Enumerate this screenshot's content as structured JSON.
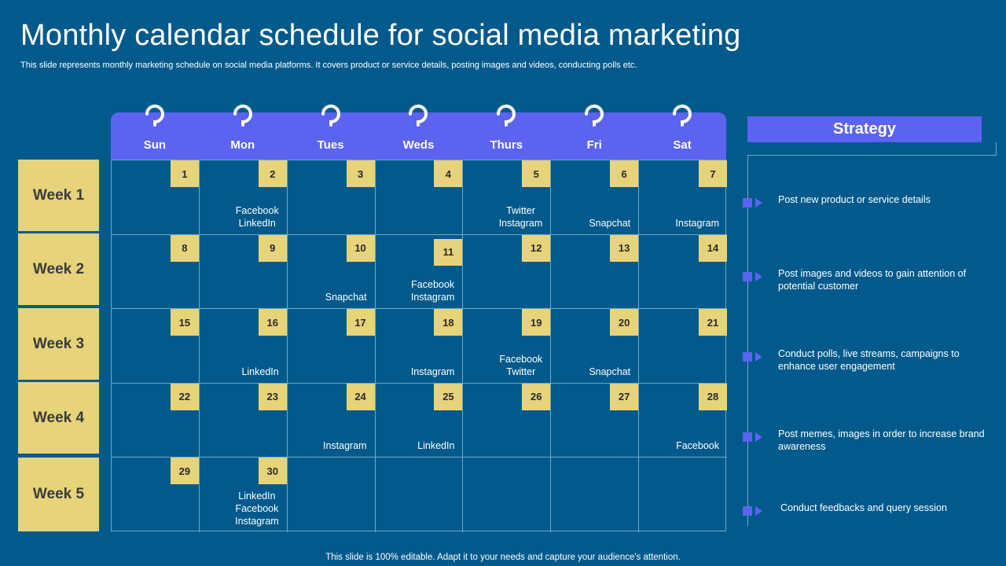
{
  "slide": {
    "title": "Monthly calendar schedule for social media marketing",
    "subtitle": "This slide represents monthly marketing schedule on social media platforms. It covers product or service details, posting images and videos, conducting polls etc.",
    "footer": "This slide is 100% editable. Adapt it to your needs and capture your audience's attention."
  },
  "weeks": [
    "Week 1",
    "Week 2",
    "Week 3",
    "Week 4",
    "Week 5"
  ],
  "days": [
    "Sun",
    "Mon",
    "Tues",
    "Weds",
    "Thurs",
    "Fri",
    "Sat"
  ],
  "calendar": [
    {
      "num": "1",
      "text": ""
    },
    {
      "num": "2",
      "text": "Facebook\nLinkedIn"
    },
    {
      "num": "3",
      "text": ""
    },
    {
      "num": "4",
      "text": ""
    },
    {
      "num": "5",
      "text": "Twitter\nInstagram"
    },
    {
      "num": "6",
      "text": "Snapchat"
    },
    {
      "num": "7",
      "text": "Instagram"
    },
    {
      "num": "8",
      "text": ""
    },
    {
      "num": "9",
      "text": ""
    },
    {
      "num": "10",
      "text": "Snapchat"
    },
    {
      "num": "11",
      "text": "Facebook\nInstagram"
    },
    {
      "num": "12",
      "text": ""
    },
    {
      "num": "13",
      "text": ""
    },
    {
      "num": "14",
      "text": ""
    },
    {
      "num": "15",
      "text": ""
    },
    {
      "num": "16",
      "text": "LinkedIn"
    },
    {
      "num": "17",
      "text": ""
    },
    {
      "num": "18",
      "text": "Instagram"
    },
    {
      "num": "19",
      "text": "Facebook\nTwitter"
    },
    {
      "num": "20",
      "text": "Snapchat"
    },
    {
      "num": "21",
      "text": ""
    },
    {
      "num": "22",
      "text": ""
    },
    {
      "num": "23",
      "text": ""
    },
    {
      "num": "24",
      "text": "Instagram"
    },
    {
      "num": "25",
      "text": "LinkedIn"
    },
    {
      "num": "26",
      "text": ""
    },
    {
      "num": "27",
      "text": ""
    },
    {
      "num": "28",
      "text": "Facebook"
    },
    {
      "num": "29",
      "text": ""
    },
    {
      "num": "30",
      "text": "LinkedIn\nFacebook\nInstagram"
    },
    {
      "num": "",
      "text": ""
    },
    {
      "num": "",
      "text": ""
    },
    {
      "num": "",
      "text": ""
    },
    {
      "num": "",
      "text": ""
    },
    {
      "num": "",
      "text": ""
    }
  ],
  "strategy": {
    "heading": "Strategy",
    "items": [
      "Post new product or service details",
      "Post images and videos to gain attention of potential customer",
      "Conduct polls, live streams, campaigns to enhance user engagement",
      "Post memes, images in order to increase brand awareness",
      "Conduct feedbacks and query session"
    ]
  },
  "colors": {
    "background": "#025a8c",
    "accent": "#5b63f0",
    "highlight": "#e6d37a",
    "grid_line": "#6fa7c8"
  }
}
